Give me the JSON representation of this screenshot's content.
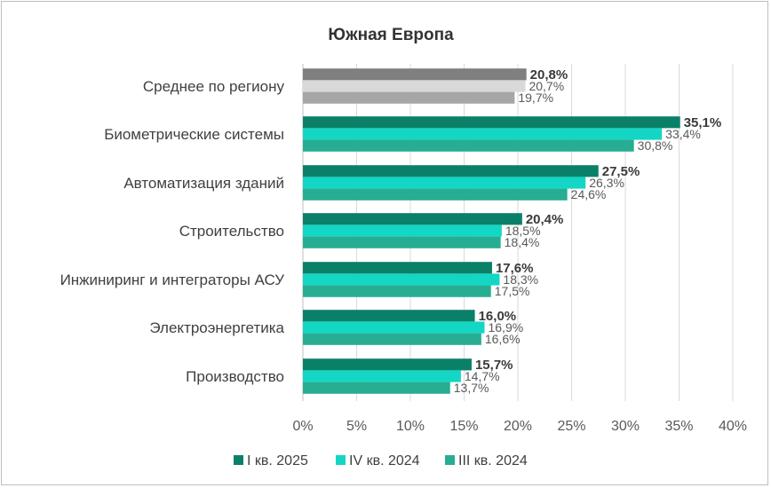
{
  "chart_data": {
    "type": "bar",
    "orientation": "horizontal",
    "title": "Южная Европа",
    "categories": [
      "Среднее по региону",
      "Биометрические системы",
      "Автоматизация зданий",
      "Строительство",
      "Инжиниринг и интеграторы АСУ",
      "Электроэнергетика",
      "Производство"
    ],
    "series": [
      {
        "name": "I кв. 2025",
        "values": [
          20.8,
          35.1,
          27.5,
          20.4,
          17.6,
          16.0,
          15.7
        ]
      },
      {
        "name": "IV кв. 2024",
        "values": [
          20.7,
          33.4,
          26.3,
          18.5,
          18.3,
          16.9,
          14.7
        ]
      },
      {
        "name": "III кв. 2024",
        "values": [
          19.7,
          30.8,
          24.6,
          18.4,
          17.5,
          16.6,
          13.7
        ]
      }
    ],
    "value_labels": [
      [
        "20,8%",
        "35,1%",
        "27,5%",
        "20,4%",
        "17,6%",
        "16,0%",
        "15,7%"
      ],
      [
        "20,7%",
        "33,4%",
        "26,3%",
        "18,5%",
        "18,3%",
        "16,9%",
        "14,7%"
      ],
      [
        "19,7%",
        "30,8%",
        "24,6%",
        "18,4%",
        "17,5%",
        "16,6%",
        "13,7%"
      ]
    ],
    "xlim": [
      0,
      40
    ],
    "x_ticks": [
      "0%",
      "5%",
      "10%",
      "15%",
      "20%",
      "25%",
      "30%",
      "35%",
      "40%"
    ],
    "grid": true,
    "legend_position": "bottom",
    "colors": {
      "series": [
        "#0b8068",
        "#14d6c4",
        "#27ad92"
      ],
      "average_group": [
        "#7f7f7f",
        "#d9d9d9",
        "#a6a6a6"
      ]
    }
  }
}
